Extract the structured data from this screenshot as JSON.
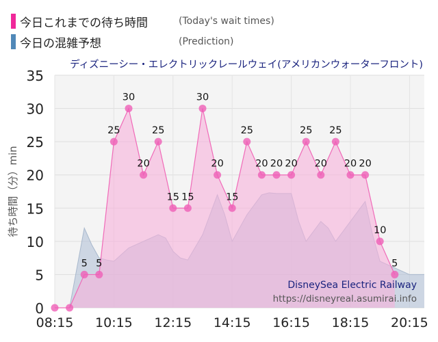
{
  "legend": {
    "today_label": "今日これまでの待ち時間",
    "today_sub": "(Today's wait times)",
    "prediction_label": "今日の混雑予想",
    "prediction_sub": "(Prediction)"
  },
  "watermark": {
    "line1": "DisneySea Electric Railway",
    "line2": "https://disneyreal.asumirai.info"
  },
  "colors": {
    "today": "#f0289a",
    "today_fill": "#f7b0da",
    "prediction": "#5088b8",
    "prediction_fill": "#b4c4d8",
    "title": "#1a237e"
  },
  "chart_data": {
    "type": "area",
    "title": "ディズニーシー・エレクトリックレールウェイ(アメリカンウォーターフロント)",
    "xlabel": "",
    "ylabel": "待ち時間（分）min",
    "ylim": [
      0,
      35
    ],
    "yticks": [
      0,
      5,
      10,
      15,
      20,
      25,
      30,
      35
    ],
    "xticks": [
      "08:15",
      "10:15",
      "12:15",
      "14:15",
      "16:15",
      "18:15",
      "20:15"
    ],
    "xlim": [
      "08:15",
      "20:45"
    ],
    "grid": true,
    "series": [
      {
        "x": [
          "08:15",
          "08:45",
          "09:15",
          "09:45",
          "10:15",
          "10:45",
          "11:15",
          "11:45",
          "12:15",
          "12:45",
          "13:15",
          "13:45",
          "14:15",
          "14:45",
          "15:15",
          "15:45",
          "16:15",
          "16:45",
          "17:15",
          "17:45",
          "18:15",
          "18:45",
          "19:15",
          "19:45"
        ],
        "values": [
          0,
          0,
          5,
          5,
          25,
          30,
          20,
          25,
          15,
          15,
          30,
          20,
          15,
          25,
          20,
          20,
          20,
          25,
          20,
          25,
          20,
          20,
          10,
          5
        ]
      },
      {
        "x": [
          "08:15",
          "08:45",
          "09:00",
          "09:15",
          "09:30",
          "09:45",
          "10:00",
          "10:15",
          "10:30",
          "10:45",
          "11:15",
          "11:45",
          "12:00",
          "12:15",
          "12:30",
          "12:45",
          "13:15",
          "13:45",
          "14:00",
          "14:15",
          "14:45",
          "15:15",
          "15:30",
          "15:45",
          "16:15",
          "16:30",
          "16:45",
          "17:00",
          "17:15",
          "17:30",
          "17:45",
          "18:00",
          "18:15",
          "18:45",
          "19:00",
          "19:15",
          "19:30",
          "19:45",
          "20:15",
          "20:45"
        ],
        "values": [
          0,
          0,
          6,
          12,
          9.5,
          7.5,
          7.2,
          7,
          8,
          9,
          10,
          11,
          10.5,
          8.5,
          7.5,
          7.2,
          11,
          17,
          14,
          10,
          14,
          17,
          17.3,
          17.2,
          17.2,
          13,
          10,
          11.5,
          13,
          12,
          10,
          11.5,
          13,
          16,
          11,
          7,
          6.5,
          6,
          5,
          5
        ]
      }
    ]
  }
}
